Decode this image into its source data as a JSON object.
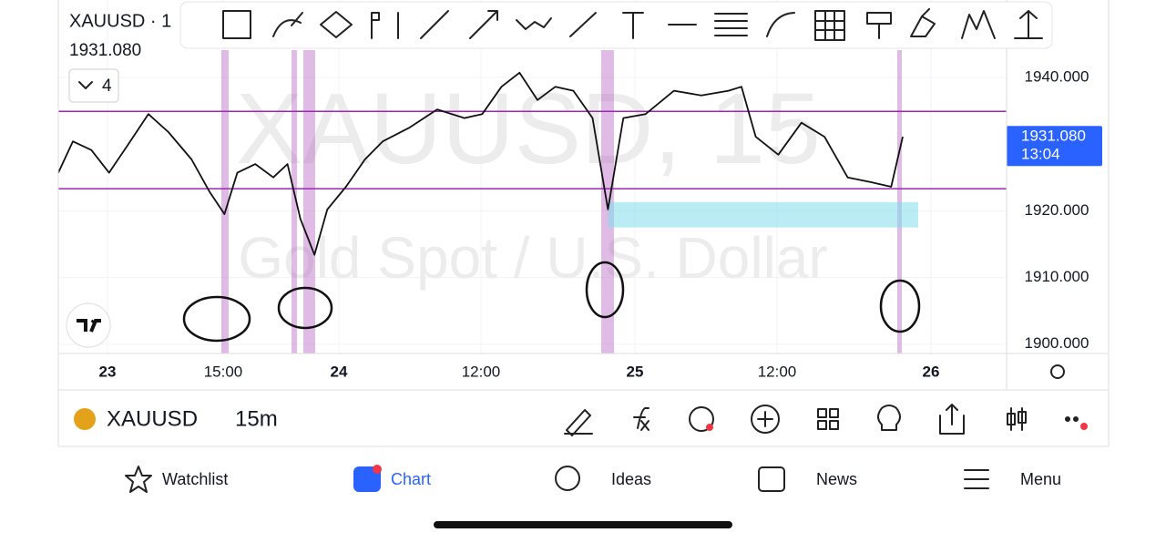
{
  "header": {
    "symbol": "XAUUSD · 1",
    "price": "1931.080",
    "indicator_count": "4"
  },
  "watermark": {
    "symbol": "XAUUSD, 15",
    "description": "Gold Spot / U.S. Dollar"
  },
  "chart_data": {
    "type": "line",
    "color": "#111111",
    "x": [
      -6.4,
      -4.5,
      -2.1,
      0.2,
      2.6,
      5.3,
      7.9,
      10.9,
      13.2,
      15.1,
      16.1,
      17.5,
      18.9,
      20.0,
      21.0,
      22.1,
      23.1,
      24.6,
      26.2,
      27.7,
      30.0,
      32.3,
      34.6,
      36.1,
      37.6,
      39.0,
      40.4,
      41.8,
      43.2,
      44.7,
      45.9,
      47.1,
      48.9,
      51.3,
      53.6,
      55.9,
      57.0,
      58.2,
      60.1,
      61.9,
      63.7,
      65.5,
      67.3,
      68.9,
      69.8
    ],
    "values": [
      1925.7,
      1930.4,
      1929.1,
      1925.7,
      1929.8,
      1934.5,
      1931.8,
      1927.7,
      1922.9,
      1919.5,
      1925.7,
      1927.0,
      1925.0,
      1927.0,
      1918.8,
      1913.4,
      1920.2,
      1923.6,
      1927.7,
      1930.4,
      1932.5,
      1935.2,
      1933.9,
      1934.5,
      1938.6,
      1940.7,
      1936.6,
      1938.6,
      1938.0,
      1933.9,
      1920.2,
      1933.9,
      1934.5,
      1938.0,
      1937.3,
      1938.0,
      1938.6,
      1931.1,
      1928.4,
      1933.2,
      1931.1,
      1925.0,
      1924.3,
      1923.6,
      1931.1
    ],
    "xlim": [
      -6.4,
      77.9
    ],
    "xticks": [
      {
        "value": 0,
        "label": "23"
      },
      {
        "value": 15,
        "label": "15:00"
      },
      {
        "value": 24,
        "label": "24"
      },
      {
        "value": 36,
        "label": "12:00"
      },
      {
        "value": 48,
        "label": "25"
      },
      {
        "value": 60,
        "label": "12:00"
      },
      {
        "value": 72,
        "label": "26"
      }
    ],
    "ylim": [
      1898.6,
      1951.6
    ],
    "yticks": [
      {
        "value": 1900,
        "label": "1900.000"
      },
      {
        "value": 1910,
        "label": "1910.000"
      },
      {
        "value": 1920,
        "label": "1920.000"
      },
      {
        "value": 1940,
        "label": "1940.000"
      }
    ],
    "levels": [
      1934.9,
      1923.3
    ],
    "zone": {
      "x": [
        45.9,
        71.0
      ],
      "y": [
        1917.5,
        1921.3
      ]
    },
    "last_price": {
      "value": 1931.08,
      "label": "1931.080"
    },
    "countdown": "13:04"
  },
  "symbol_bar": {
    "symbol": "XAUUSD",
    "interval": "15m"
  },
  "nav": [
    "Watchlist",
    "Chart",
    "Ideas",
    "News",
    "Menu"
  ]
}
